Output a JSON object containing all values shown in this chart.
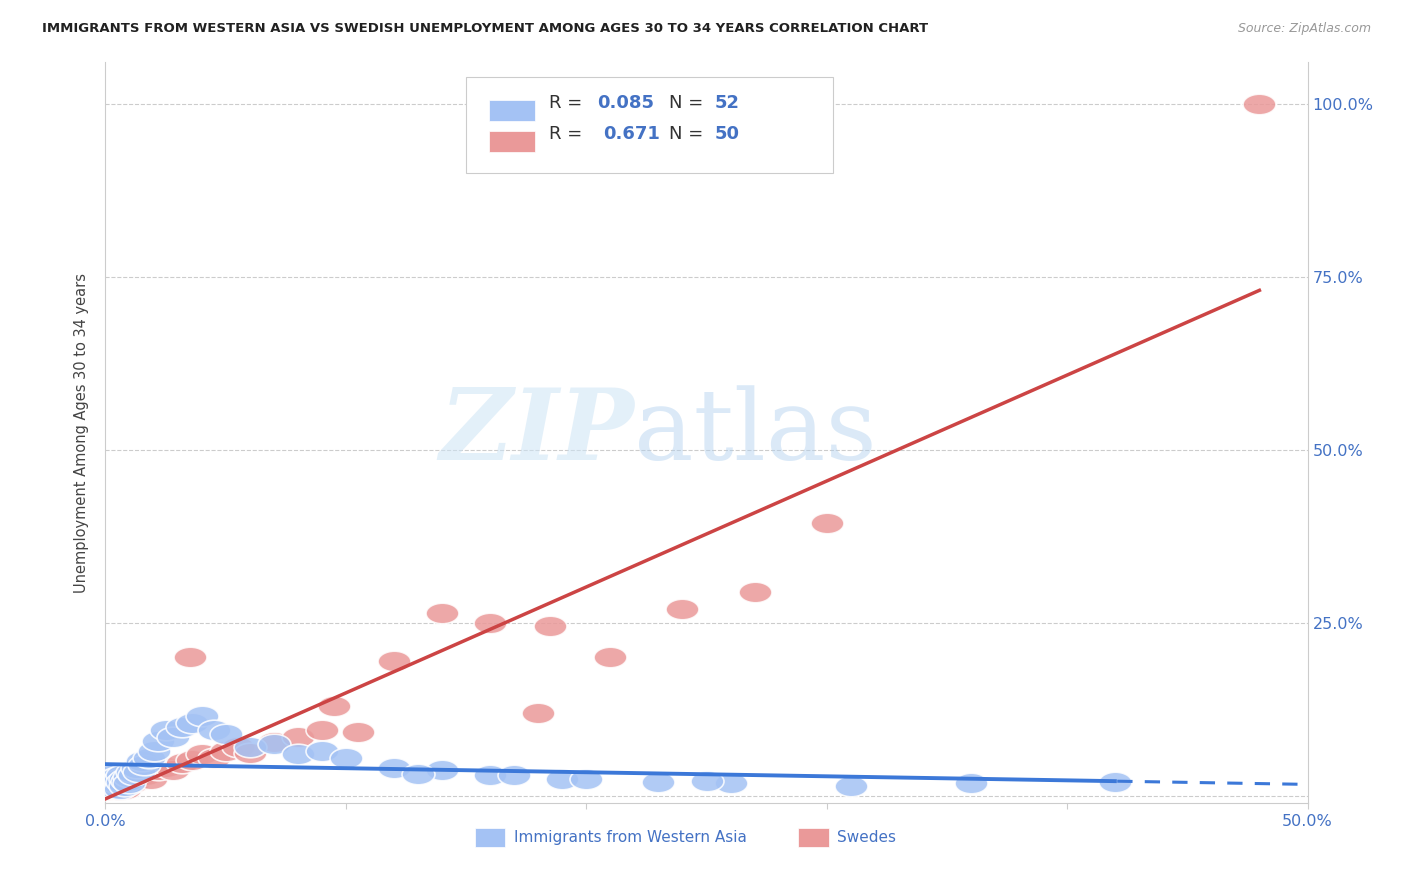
{
  "title": "IMMIGRANTS FROM WESTERN ASIA VS SWEDISH UNEMPLOYMENT AMONG AGES 30 TO 34 YEARS CORRELATION CHART",
  "source": "Source: ZipAtlas.com",
  "ylabel": "Unemployment Among Ages 30 to 34 years",
  "xlim": [
    0.0,
    0.5
  ],
  "ylim": [
    -0.01,
    1.06
  ],
  "xticks": [
    0.0,
    0.1,
    0.2,
    0.3,
    0.4,
    0.5
  ],
  "xticklabels": [
    "0.0%",
    "",
    "",
    "",
    "",
    "50.0%"
  ],
  "ytick_positions": [
    0.0,
    0.25,
    0.5,
    0.75,
    1.0
  ],
  "yticklabels_right": [
    "",
    "25.0%",
    "50.0%",
    "75.0%",
    "100.0%"
  ],
  "R_blue": "0.085",
  "N_blue": "52",
  "R_pink": "0.671",
  "N_pink": "50",
  "blue_fill": "#a4c2f4",
  "blue_fill_dark": "#6d9eeb",
  "pink_fill": "#ea9999",
  "pink_fill_dark": "#e06666",
  "blue_line": "#3c78d8",
  "pink_line": "#cc4444",
  "grid_color": "#cccccc",
  "title_color": "#212121",
  "source_color": "#999999",
  "axis_label_color": "#4472c4",
  "watermark_zip_color": "#d0e4f7",
  "watermark_atlas_color": "#b8d8f0",
  "blue_x": [
    0.001,
    0.002,
    0.002,
    0.003,
    0.003,
    0.004,
    0.004,
    0.005,
    0.005,
    0.006,
    0.006,
    0.007,
    0.007,
    0.008,
    0.008,
    0.009,
    0.01,
    0.01,
    0.011,
    0.012,
    0.013,
    0.014,
    0.015,
    0.016,
    0.018,
    0.02,
    0.022,
    0.025,
    0.028,
    0.032,
    0.036,
    0.04,
    0.045,
    0.05,
    0.06,
    0.07,
    0.08,
    0.09,
    0.1,
    0.12,
    0.14,
    0.16,
    0.19,
    0.23,
    0.26,
    0.31,
    0.36,
    0.42,
    0.2,
    0.25,
    0.17,
    0.13
  ],
  "blue_y": [
    0.02,
    0.015,
    0.03,
    0.018,
    0.025,
    0.022,
    0.012,
    0.028,
    0.018,
    0.025,
    0.01,
    0.03,
    0.02,
    0.025,
    0.015,
    0.022,
    0.028,
    0.018,
    0.035,
    0.03,
    0.04,
    0.035,
    0.05,
    0.045,
    0.055,
    0.065,
    0.08,
    0.095,
    0.085,
    0.1,
    0.105,
    0.115,
    0.095,
    0.09,
    0.07,
    0.075,
    0.06,
    0.065,
    0.055,
    0.04,
    0.038,
    0.03,
    0.025,
    0.02,
    0.018,
    0.015,
    0.018,
    0.02,
    0.025,
    0.022,
    0.03,
    0.032
  ],
  "pink_x": [
    0.001,
    0.001,
    0.002,
    0.002,
    0.003,
    0.003,
    0.004,
    0.004,
    0.005,
    0.005,
    0.006,
    0.006,
    0.007,
    0.007,
    0.008,
    0.008,
    0.009,
    0.01,
    0.011,
    0.012,
    0.013,
    0.015,
    0.017,
    0.019,
    0.022,
    0.025,
    0.028,
    0.032,
    0.036,
    0.04,
    0.045,
    0.05,
    0.055,
    0.06,
    0.07,
    0.08,
    0.09,
    0.105,
    0.12,
    0.14,
    0.16,
    0.185,
    0.21,
    0.24,
    0.27,
    0.3,
    0.18,
    0.095,
    0.035,
    0.48
  ],
  "pink_y": [
    0.008,
    0.015,
    0.01,
    0.02,
    0.012,
    0.018,
    0.015,
    0.022,
    0.01,
    0.018,
    0.008,
    0.025,
    0.012,
    0.02,
    0.015,
    0.01,
    0.022,
    0.018,
    0.025,
    0.02,
    0.028,
    0.035,
    0.03,
    0.025,
    0.038,
    0.042,
    0.038,
    0.048,
    0.052,
    0.06,
    0.055,
    0.065,
    0.07,
    0.062,
    0.078,
    0.085,
    0.095,
    0.092,
    0.195,
    0.265,
    0.25,
    0.245,
    0.2,
    0.27,
    0.295,
    0.395,
    0.12,
    0.13,
    0.2,
    1.0
  ]
}
